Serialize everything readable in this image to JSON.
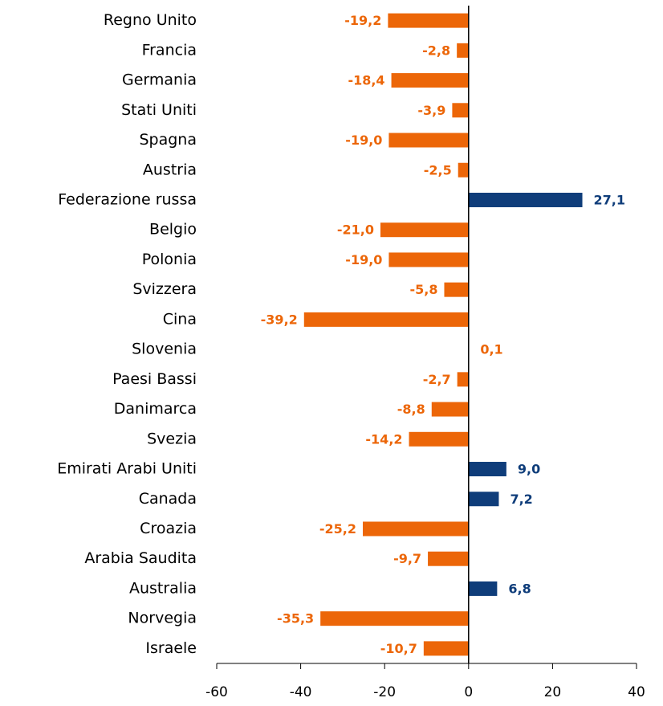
{
  "chart_data": {
    "type": "hbar",
    "categories": [
      "Regno Unito",
      "Francia",
      "Germania",
      "Stati Uniti",
      "Spagna",
      "Austria",
      "Federazione russa",
      "Belgio",
      "Polonia",
      "Svizzera",
      "Cina",
      "Slovenia",
      "Paesi Bassi",
      "Danimarca",
      "Svezia",
      "Emirati Arabi Uniti",
      "Canada",
      "Croazia",
      "Arabia Saudita",
      "Australia",
      "Norvegia",
      "Israele"
    ],
    "values": [
      -19.2,
      -2.8,
      -18.4,
      -3.9,
      -19.0,
      -2.5,
      27.1,
      -21.0,
      -19.0,
      -5.8,
      -39.2,
      0.1,
      -2.7,
      -8.8,
      -14.2,
      9.0,
      7.2,
      -25.2,
      -9.7,
      6.8,
      -35.3,
      -10.7
    ],
    "value_labels": [
      "-19,2",
      "-2,8",
      "-18,4",
      "-3,9",
      "-19,0",
      "-2,5",
      "27,1",
      "-21,0",
      "-19,0",
      "-5,8",
      "-39,2",
      "0,1",
      "-2,7",
      "-8,8",
      "-14,2",
      "9,0",
      "7,2",
      "-25,2",
      "-9,7",
      "6,8",
      "-35,3",
      "-10,7"
    ],
    "colors": [
      "#ec6608",
      "#ec6608",
      "#ec6608",
      "#ec6608",
      "#ec6608",
      "#ec6608",
      "#0f3d7a",
      "#ec6608",
      "#ec6608",
      "#ec6608",
      "#ec6608",
      "#ec6608",
      "#ec6608",
      "#ec6608",
      "#ec6608",
      "#0f3d7a",
      "#0f3d7a",
      "#ec6608",
      "#ec6608",
      "#0f3d7a",
      "#ec6608",
      "#ec6608"
    ],
    "xlim": [
      -60,
      40
    ],
    "xticks": [
      -60,
      -40,
      -20,
      0,
      20,
      40
    ]
  }
}
